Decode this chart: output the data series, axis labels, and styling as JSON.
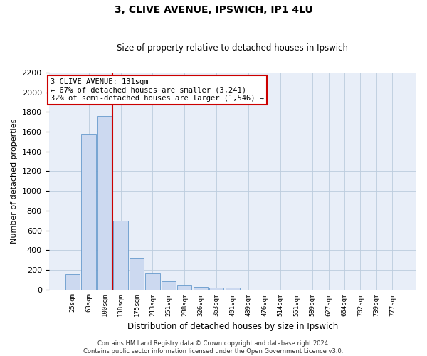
{
  "title1": "3, CLIVE AVENUE, IPSWICH, IP1 4LU",
  "title2": "Size of property relative to detached houses in Ipswich",
  "xlabel": "Distribution of detached houses by size in Ipswich",
  "ylabel": "Number of detached properties",
  "categories": [
    "25sqm",
    "63sqm",
    "100sqm",
    "138sqm",
    "175sqm",
    "213sqm",
    "251sqm",
    "288sqm",
    "326sqm",
    "363sqm",
    "401sqm",
    "439sqm",
    "476sqm",
    "514sqm",
    "551sqm",
    "589sqm",
    "627sqm",
    "664sqm",
    "702sqm",
    "739sqm",
    "777sqm"
  ],
  "values": [
    155,
    1580,
    1760,
    700,
    315,
    160,
    85,
    47,
    27,
    22,
    15,
    0,
    0,
    0,
    0,
    0,
    0,
    0,
    0,
    0,
    0
  ],
  "bar_color": "#ccd9f0",
  "bar_edge_color": "#6699cc",
  "vline_x": 2.5,
  "vline_color": "#cc0000",
  "annotation_text": "3 CLIVE AVENUE: 131sqm\n← 67% of detached houses are smaller (3,241)\n32% of semi-detached houses are larger (1,546) →",
  "annotation_box_facecolor": "#ffffff",
  "annotation_box_edgecolor": "#cc0000",
  "ylim": [
    0,
    2200
  ],
  "yticks": [
    0,
    200,
    400,
    600,
    800,
    1000,
    1200,
    1400,
    1600,
    1800,
    2000,
    2200
  ],
  "grid_color": "#bbccdd",
  "bg_color": "#e8eef8",
  "footer1": "Contains HM Land Registry data © Crown copyright and database right 2024.",
  "footer2": "Contains public sector information licensed under the Open Government Licence v3.0."
}
